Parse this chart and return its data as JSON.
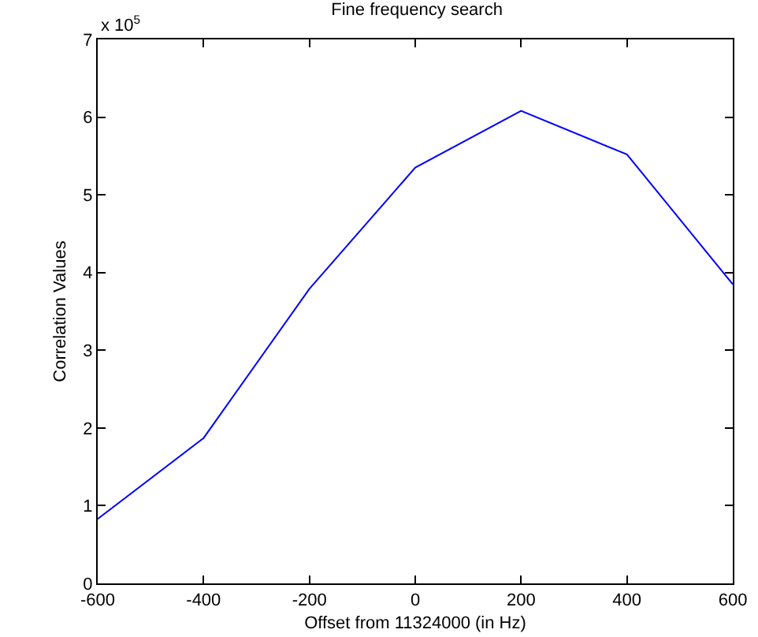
{
  "chart_data": {
    "type": "line",
    "title": "Fine frequency search",
    "xlabel": "Offset from 11324000 (in Hz)",
    "ylabel": "Correlation Values",
    "annotations": [
      "x 10$^{5}$"
    ],
    "x": [
      -600,
      -400,
      -200,
      0,
      200,
      400,
      600
    ],
    "series": [
      {
        "color": "#0000ff",
        "values": [
          0.83,
          1.87,
          3.79,
          5.35,
          6.08,
          5.52,
          3.85
        ]
      }
    ],
    "xlim": [
      -600,
      600
    ],
    "xticks": [
      -600,
      -400,
      -200,
      0,
      200,
      400,
      600
    ],
    "ylim": [
      0,
      7
    ],
    "yticks": [
      0,
      1,
      2,
      3,
      4,
      5,
      6,
      7
    ],
    "grid": false,
    "marker": "none",
    "line_style": "solid"
  }
}
